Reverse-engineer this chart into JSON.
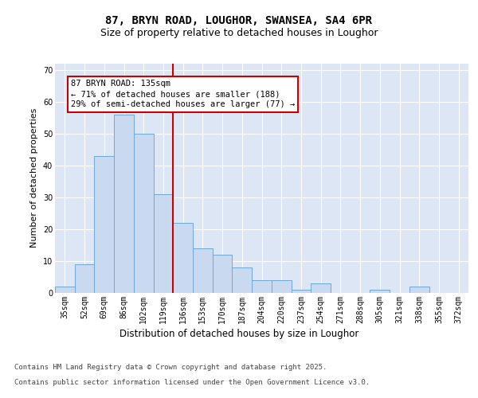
{
  "title1": "87, BRYN ROAD, LOUGHOR, SWANSEA, SA4 6PR",
  "title2": "Size of property relative to detached houses in Loughor",
  "xlabel": "Distribution of detached houses by size in Loughor",
  "ylabel": "Number of detached properties",
  "categories": [
    "35sqm",
    "52sqm",
    "69sqm",
    "86sqm",
    "102sqm",
    "119sqm",
    "136sqm",
    "153sqm",
    "170sqm",
    "187sqm",
    "204sqm",
    "220sqm",
    "237sqm",
    "254sqm",
    "271sqm",
    "288sqm",
    "305sqm",
    "321sqm",
    "338sqm",
    "355sqm",
    "372sqm"
  ],
  "values": [
    2,
    9,
    43,
    56,
    50,
    31,
    22,
    14,
    12,
    8,
    4,
    4,
    1,
    3,
    0,
    0,
    1,
    0,
    2,
    0,
    0
  ],
  "bar_color": "#c9d9ef",
  "bar_edge_color": "#6fa8dc",
  "vline_x_index": 6,
  "vline_color": "#cc0000",
  "annotation_text": "87 BRYN ROAD: 135sqm\n← 71% of detached houses are smaller (188)\n29% of semi-detached houses are larger (77) →",
  "annotation_box_color": "#ffffff",
  "annotation_box_edge": "#cc0000",
  "ylim": [
    0,
    72
  ],
  "yticks": [
    0,
    10,
    20,
    30,
    40,
    50,
    60,
    70
  ],
  "background_color": "#dce6f5",
  "grid_color": "#ffffff",
  "footer1": "Contains HM Land Registry data © Crown copyright and database right 2025.",
  "footer2": "Contains public sector information licensed under the Open Government Licence v3.0.",
  "title1_fontsize": 10,
  "title2_fontsize": 9,
  "tick_fontsize": 7,
  "xlabel_fontsize": 8.5,
  "ylabel_fontsize": 8,
  "footer_fontsize": 6.5,
  "ann_fontsize": 7.5
}
